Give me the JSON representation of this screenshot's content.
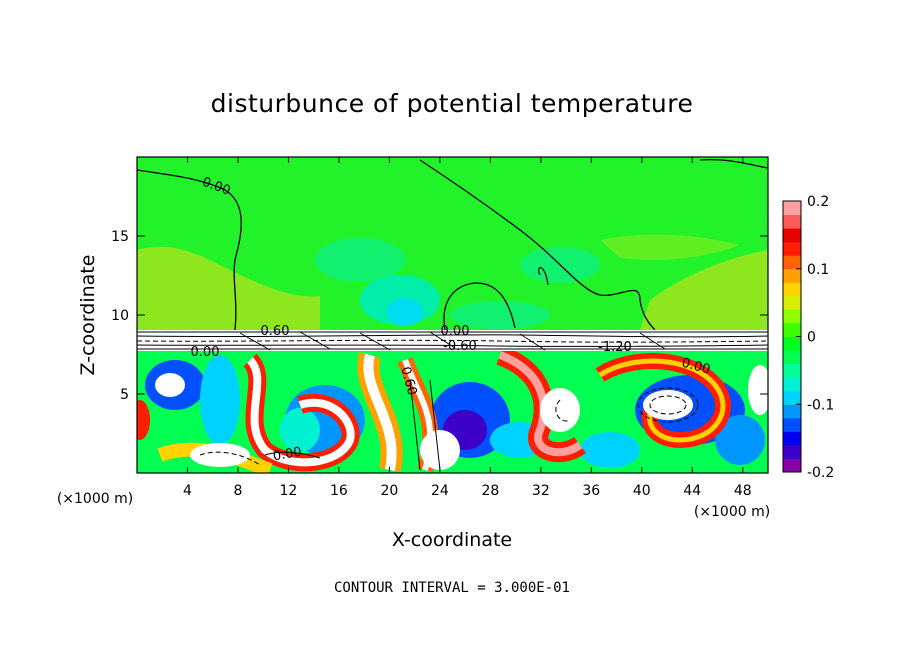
{
  "chart_data": {
    "type": "heatmap",
    "title": "disturbunce of potential temperature",
    "xlabel": "X-coordinate",
    "ylabel": "Z-coordinate",
    "x_unit": "(×1000 m)",
    "x_ticks": [
      4,
      8,
      12,
      16,
      20,
      24,
      28,
      32,
      36,
      40,
      44,
      48
    ],
    "y_ticks": [
      5,
      10,
      15
    ],
    "xlim": [
      0,
      50
    ],
    "ylim": [
      0,
      20
    ],
    "colorbar": {
      "range": [
        -0.2,
        0.2
      ],
      "tick_labels": [
        "0.2",
        "0.1",
        "0",
        "-0.1",
        "-0.2"
      ],
      "tick_values": [
        0.2,
        0.1,
        0,
        -0.1,
        -0.2
      ],
      "colors": [
        "#8a00a8",
        "#3c00c8",
        "#0000f0",
        "#0050ff",
        "#0096ff",
        "#00d2ff",
        "#00f0d2",
        "#00ff96",
        "#00ff50",
        "#00ff1e",
        "#3cff00",
        "#8cff00",
        "#d2f000",
        "#ffd200",
        "#ffa000",
        "#ff6400",
        "#ff1e00",
        "#e60000",
        "#ff5a5a",
        "#ffa0a0"
      ]
    },
    "contour_labels": [
      "0.00",
      "0.60",
      "0.00",
      "-0.60",
      "-1.20",
      "0.60",
      "0.00",
      "0.00",
      "0.00"
    ],
    "footer": "CONTOUR INTERVAL = 3.000E-01"
  }
}
